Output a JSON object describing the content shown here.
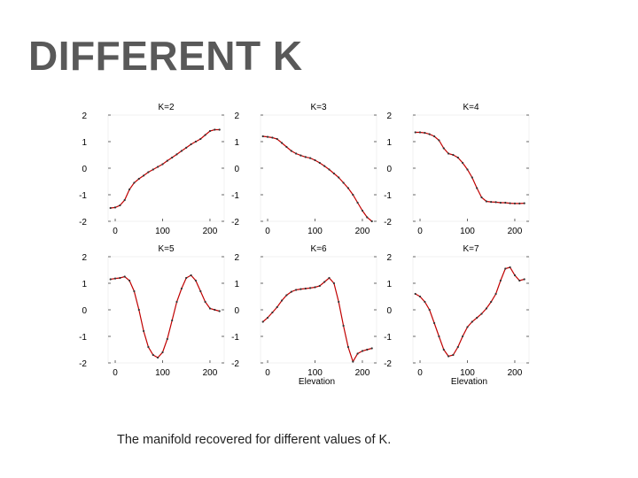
{
  "slide": {
    "title": "DIFFERENT K",
    "caption": "The manifold recovered for different values of K."
  },
  "style": {
    "line_color": "#c00000",
    "marker_color": "#333333",
    "axis_color": "#000000"
  },
  "chart_data": [
    {
      "type": "line",
      "title": "K=2",
      "xlabel": "",
      "ylabel": "",
      "xlim": [
        -15,
        230
      ],
      "ylim": [
        -2,
        2
      ],
      "xticks": [
        "0",
        "100",
        "200"
      ],
      "yticks": [
        "2",
        "1",
        "0",
        "-1",
        "-2"
      ],
      "x": [
        -10,
        0,
        10,
        20,
        30,
        40,
        50,
        60,
        70,
        80,
        90,
        100,
        110,
        120,
        130,
        140,
        150,
        160,
        170,
        180,
        190,
        200,
        210,
        220
      ],
      "series": [
        {
          "values": [
            -1.5,
            -1.48,
            -1.4,
            -1.2,
            -0.8,
            -0.55,
            -0.4,
            -0.28,
            -0.15,
            -0.05,
            0.05,
            0.15,
            0.28,
            0.4,
            0.52,
            0.65,
            0.77,
            0.9,
            1.0,
            1.1,
            1.25,
            1.4,
            1.45,
            1.45
          ]
        }
      ]
    },
    {
      "type": "line",
      "title": "K=3",
      "xlabel": "",
      "ylabel": "",
      "xlim": [
        -15,
        230
      ],
      "ylim": [
        -2,
        2
      ],
      "xticks": [
        "0",
        "100",
        "200"
      ],
      "yticks": [
        "2",
        "1",
        "0",
        "-1",
        "-2"
      ],
      "x": [
        -10,
        0,
        10,
        20,
        30,
        40,
        50,
        60,
        70,
        80,
        90,
        100,
        110,
        120,
        130,
        140,
        150,
        160,
        170,
        180,
        190,
        200,
        210,
        220
      ],
      "series": [
        {
          "values": [
            1.2,
            1.18,
            1.15,
            1.1,
            0.95,
            0.8,
            0.65,
            0.55,
            0.48,
            0.42,
            0.38,
            0.3,
            0.2,
            0.08,
            -0.05,
            -0.2,
            -0.35,
            -0.55,
            -0.75,
            -1.0,
            -1.3,
            -1.6,
            -1.85,
            -2.0
          ]
        }
      ]
    },
    {
      "type": "line",
      "title": "K=4",
      "xlabel": "",
      "ylabel": "",
      "xlim": [
        -15,
        230
      ],
      "ylim": [
        -2,
        2
      ],
      "xticks": [
        "0",
        "100",
        "200"
      ],
      "yticks": [
        "2",
        "1",
        "0",
        "-1",
        "-2"
      ],
      "x": [
        -10,
        0,
        10,
        20,
        30,
        40,
        50,
        60,
        70,
        80,
        90,
        100,
        110,
        120,
        130,
        140,
        150,
        160,
        170,
        180,
        190,
        200,
        210,
        220
      ],
      "series": [
        {
          "values": [
            1.35,
            1.35,
            1.33,
            1.28,
            1.2,
            1.05,
            0.75,
            0.55,
            0.5,
            0.4,
            0.2,
            -0.05,
            -0.35,
            -0.75,
            -1.1,
            -1.25,
            -1.27,
            -1.28,
            -1.3,
            -1.3,
            -1.32,
            -1.33,
            -1.33,
            -1.32
          ]
        }
      ]
    },
    {
      "type": "line",
      "title": "K=5",
      "xlabel": "",
      "ylabel": "",
      "xlim": [
        -15,
        230
      ],
      "ylim": [
        -2,
        2
      ],
      "xticks": [
        "0",
        "100",
        "200"
      ],
      "yticks": [
        "2",
        "1",
        "0",
        "-1",
        "-2"
      ],
      "x": [
        -10,
        0,
        10,
        20,
        30,
        40,
        50,
        60,
        70,
        80,
        90,
        100,
        110,
        120,
        130,
        140,
        150,
        160,
        170,
        180,
        190,
        200,
        210,
        220
      ],
      "series": [
        {
          "values": [
            1.15,
            1.18,
            1.2,
            1.25,
            1.1,
            0.7,
            0.0,
            -0.8,
            -1.4,
            -1.7,
            -1.8,
            -1.6,
            -1.1,
            -0.4,
            0.3,
            0.8,
            1.2,
            1.3,
            1.1,
            0.7,
            0.3,
            0.05,
            0.0,
            -0.05
          ]
        }
      ]
    },
    {
      "type": "line",
      "title": "K=6",
      "xlabel": "Elevation",
      "ylabel": "",
      "xlim": [
        -15,
        230
      ],
      "ylim": [
        -2,
        2
      ],
      "xticks": [
        "0",
        "100",
        "200"
      ],
      "yticks": [
        "2",
        "1",
        "0",
        "-1",
        "-2"
      ],
      "x": [
        -10,
        0,
        10,
        20,
        30,
        40,
        50,
        60,
        70,
        80,
        90,
        100,
        110,
        120,
        130,
        140,
        150,
        160,
        170,
        180,
        190,
        200,
        210,
        220
      ],
      "series": [
        {
          "values": [
            -0.45,
            -0.3,
            -0.1,
            0.1,
            0.35,
            0.55,
            0.68,
            0.75,
            0.78,
            0.8,
            0.82,
            0.85,
            0.9,
            1.05,
            1.2,
            1.0,
            0.3,
            -0.6,
            -1.4,
            -1.95,
            -1.65,
            -1.55,
            -1.5,
            -1.45
          ]
        }
      ]
    },
    {
      "type": "line",
      "title": "K=7",
      "xlabel": "Elevation",
      "ylabel": "",
      "xlim": [
        -15,
        230
      ],
      "ylim": [
        -2,
        2
      ],
      "xticks": [
        "0",
        "100",
        "200"
      ],
      "yticks": [
        "2",
        "1",
        "0",
        "-1",
        "-2"
      ],
      "x": [
        -10,
        0,
        10,
        20,
        30,
        40,
        50,
        60,
        70,
        80,
        90,
        100,
        110,
        120,
        130,
        140,
        150,
        160,
        170,
        180,
        190,
        200,
        210,
        220
      ],
      "series": [
        {
          "values": [
            0.6,
            0.5,
            0.3,
            0.0,
            -0.5,
            -1.0,
            -1.5,
            -1.75,
            -1.7,
            -1.4,
            -1.0,
            -0.65,
            -0.45,
            -0.3,
            -0.15,
            0.05,
            0.3,
            0.6,
            1.1,
            1.55,
            1.6,
            1.3,
            1.1,
            1.15
          ]
        }
      ]
    }
  ]
}
